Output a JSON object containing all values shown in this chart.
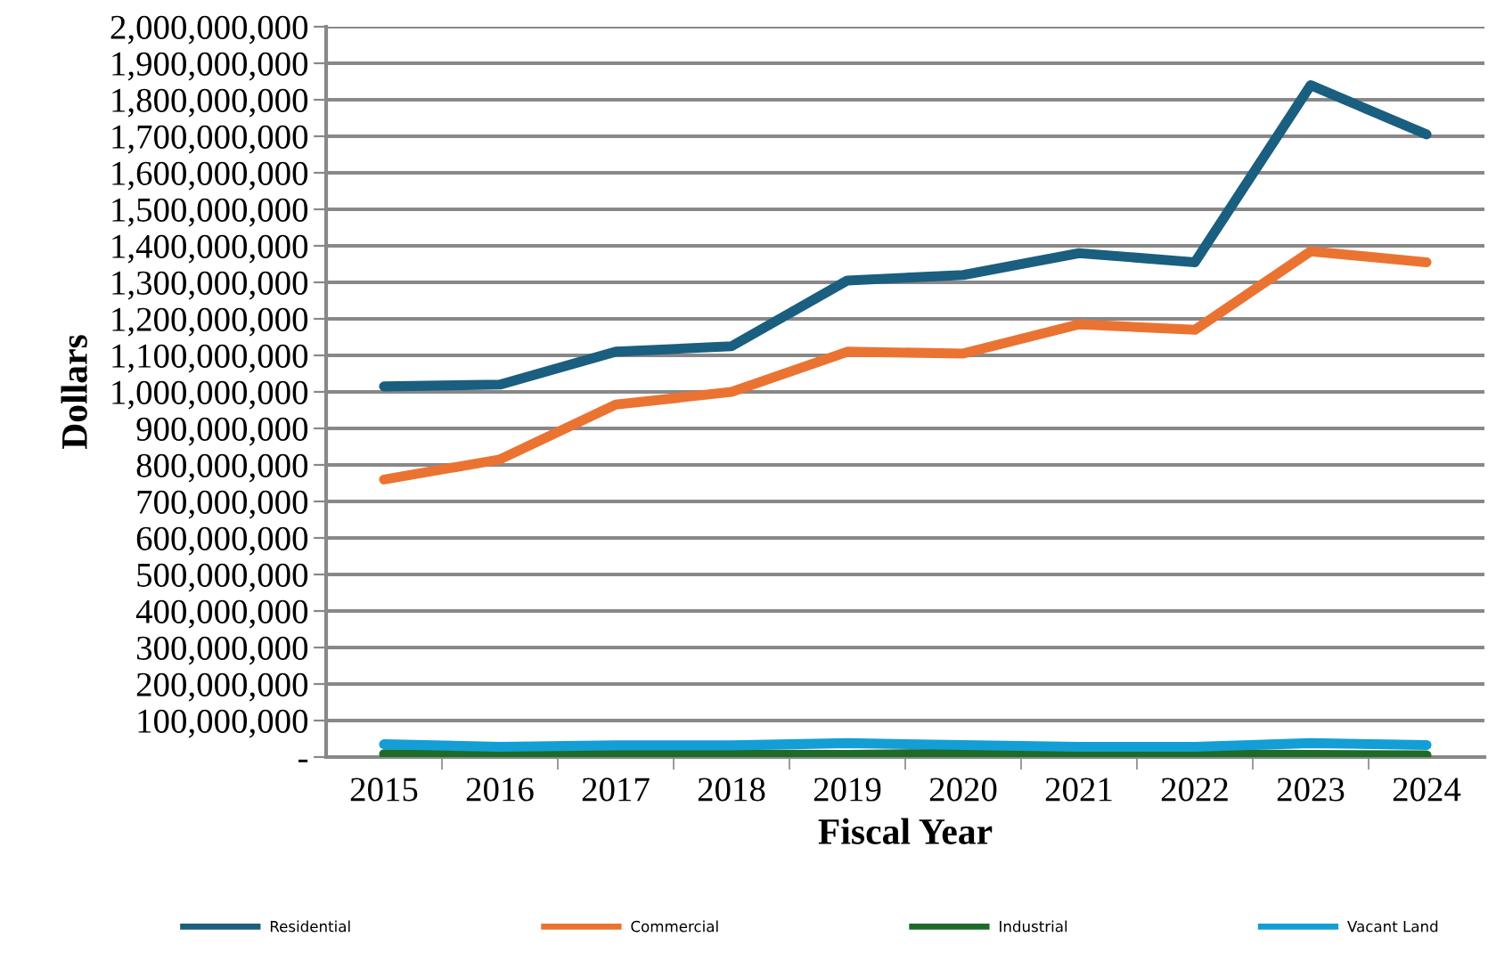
{
  "chart_data": {
    "type": "line",
    "xlabel": "Fiscal Year",
    "ylabel": "Dollars",
    "categories": [
      "2015",
      "2016",
      "2017",
      "2018",
      "2019",
      "2020",
      "2021",
      "2022",
      "2023",
      "2024"
    ],
    "series": [
      {
        "name": "Residential",
        "color": "#1a5e80",
        "values": [
          1015000000,
          1020000000,
          1110000000,
          1125000000,
          1305000000,
          1320000000,
          1380000000,
          1355000000,
          1840000000,
          1705000000
        ]
      },
      {
        "name": "Commercial",
        "color": "#eb7332",
        "values": [
          760000000,
          815000000,
          965000000,
          1000000000,
          1110000000,
          1105000000,
          1185000000,
          1170000000,
          1385000000,
          1355000000
        ]
      },
      {
        "name": "Industrial",
        "color": "#1e6b28",
        "values": [
          8000000,
          7000000,
          9000000,
          7000000,
          6000000,
          9000000,
          7000000,
          8000000,
          6000000,
          5000000
        ]
      },
      {
        "name": "Vacant Land",
        "color": "#139fd5",
        "values": [
          35000000,
          28000000,
          32000000,
          32000000,
          38000000,
          33000000,
          28000000,
          28000000,
          38000000,
          33000000
        ]
      }
    ],
    "ylim": [
      0,
      2000000000
    ],
    "yticks": [
      {
        "value": 0,
        "label": "-"
      },
      {
        "value": 100000000,
        "label": "100,000,000"
      },
      {
        "value": 200000000,
        "label": "200,000,000"
      },
      {
        "value": 300000000,
        "label": "300,000,000"
      },
      {
        "value": 400000000,
        "label": "400,000,000"
      },
      {
        "value": 500000000,
        "label": "500,000,000"
      },
      {
        "value": 600000000,
        "label": "600,000,000"
      },
      {
        "value": 700000000,
        "label": "700,000,000"
      },
      {
        "value": 800000000,
        "label": "800,000,000"
      },
      {
        "value": 900000000,
        "label": "900,000,000"
      },
      {
        "value": 1000000000,
        "label": "1,000,000,000"
      },
      {
        "value": 1100000000,
        "label": "1,100,000,000"
      },
      {
        "value": 1200000000,
        "label": "1,200,000,000"
      },
      {
        "value": 1300000000,
        "label": "1,300,000,000"
      },
      {
        "value": 1400000000,
        "label": "1,400,000,000"
      },
      {
        "value": 1500000000,
        "label": "1,500,000,000"
      },
      {
        "value": 1600000000,
        "label": "1,600,000,000"
      },
      {
        "value": 1700000000,
        "label": "1,700,000,000"
      },
      {
        "value": 1800000000,
        "label": "1,800,000,000"
      },
      {
        "value": 1900000000,
        "label": "1,900,000,000"
      },
      {
        "value": 2000000000,
        "label": "2,000,000,000"
      }
    ],
    "grid": "y",
    "legend": "bottom",
    "line_style": "solid",
    "marker": "none"
  }
}
